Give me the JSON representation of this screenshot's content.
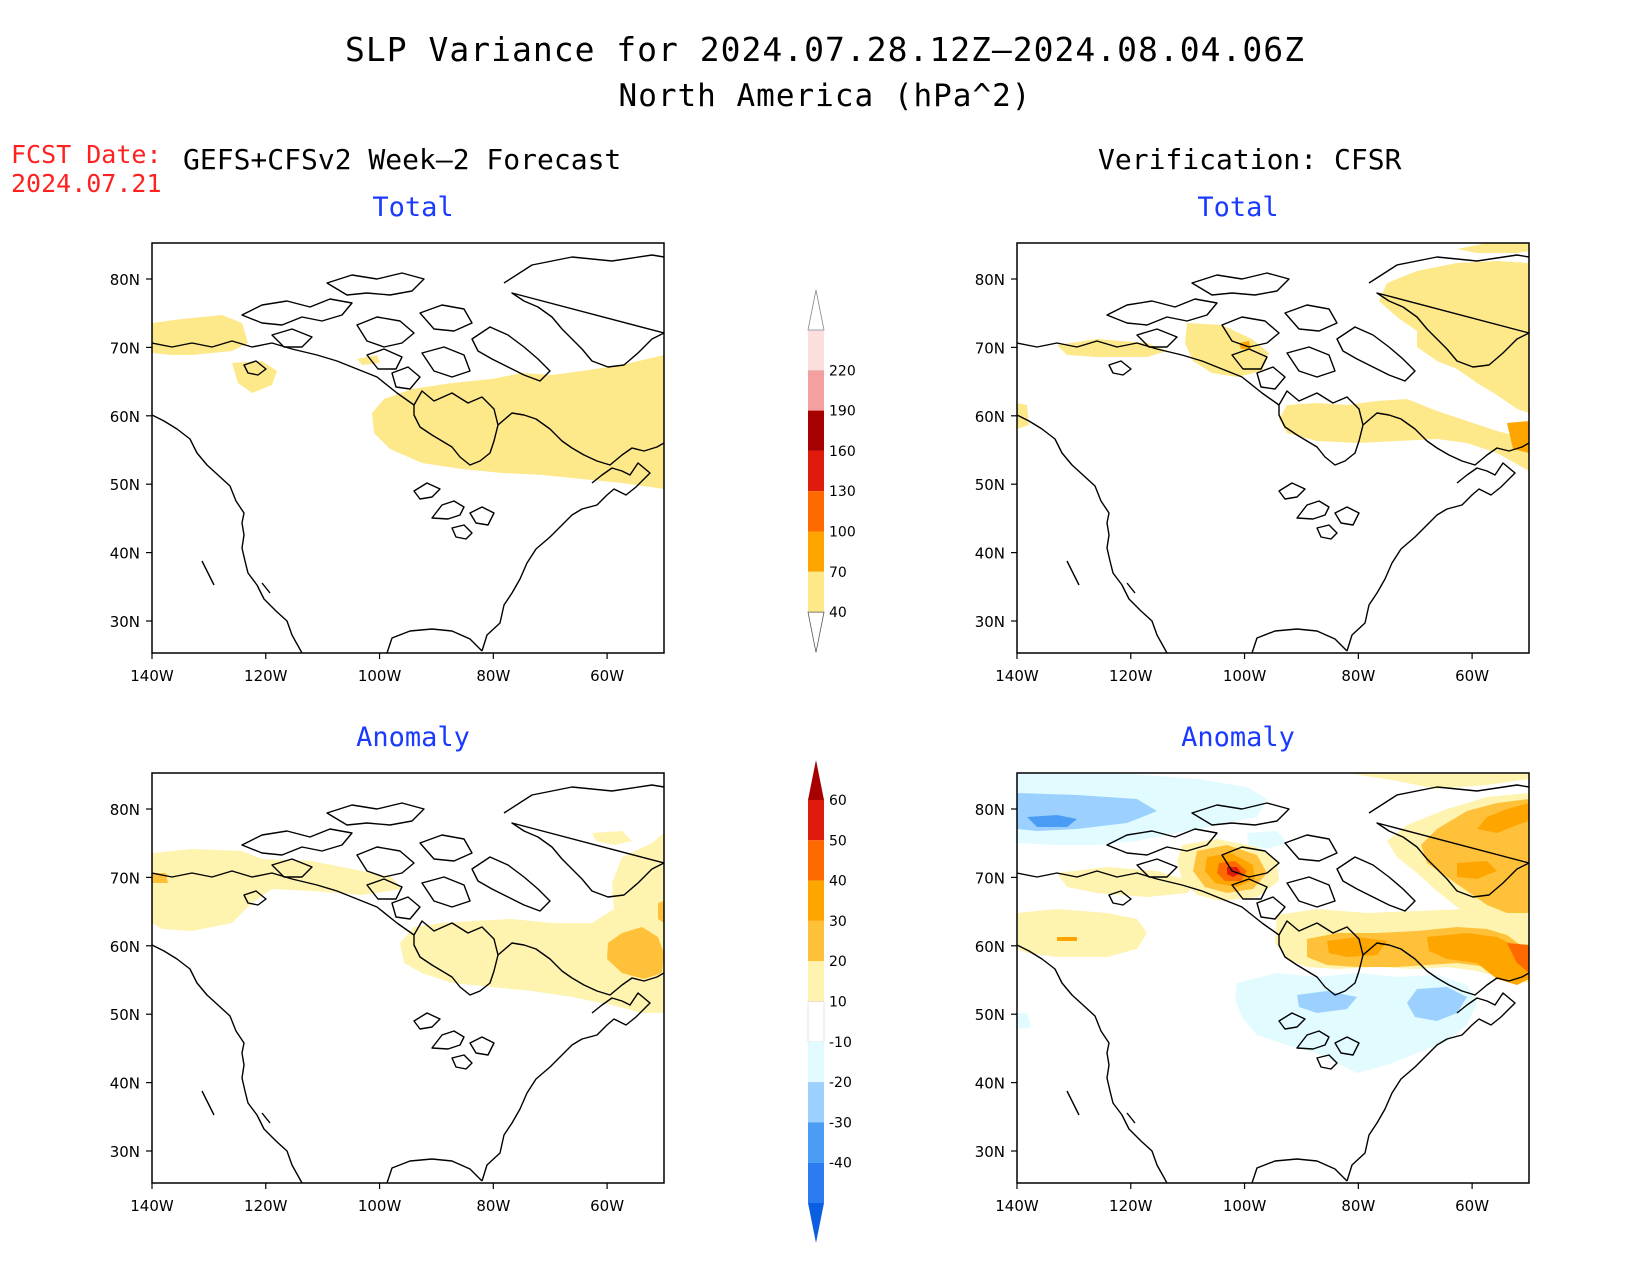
{
  "header": {
    "title": "SLP Variance for 2024.07.28.12Z–2024.08.04.06Z",
    "subtitle": "North America (hPa^2)",
    "fcst_date_label": "FCST Date:",
    "fcst_date_value": "2024.07.21",
    "left_column_title": "GEFS+CFSv2 Week–2 Forecast",
    "right_column_title": "Verification: CFSR"
  },
  "panels": {
    "forecast_total": "Total",
    "forecast_anomaly": "Anomaly",
    "verification_total": "Total",
    "verification_anomaly": "Anomaly"
  },
  "axes": {
    "lon_labels": [
      "140W",
      "120W",
      "100W",
      "80W",
      "60W"
    ],
    "lat_labels": [
      "80N",
      "70N",
      "60N",
      "50N",
      "40N",
      "30N"
    ]
  },
  "colorbars": {
    "total": {
      "levels": [
        "40",
        "70",
        "100",
        "130",
        "160",
        "190",
        "220"
      ],
      "colors": [
        "#fde88a",
        "#ffa500",
        "#ff6a00",
        "#e11b0b",
        "#a60000",
        "#f4a0a0",
        "#fcdede"
      ]
    },
    "anomaly": {
      "levels": [
        "60",
        "50",
        "40",
        "30",
        "20",
        "10",
        "-10",
        "-20",
        "-30",
        "-40"
      ],
      "colors": [
        "#a60000",
        "#e11b0b",
        "#ff6a00",
        "#ffa500",
        "#ffc13a",
        "#fff3b0",
        "#ffffff",
        "#e1fbff",
        "#9cd0ff",
        "#4a9cf5",
        "#2a7cf0",
        "#0a5ee0"
      ]
    }
  },
  "colors": {
    "title_blue": "#1a3aff",
    "fcst_red": "#ff2020"
  }
}
